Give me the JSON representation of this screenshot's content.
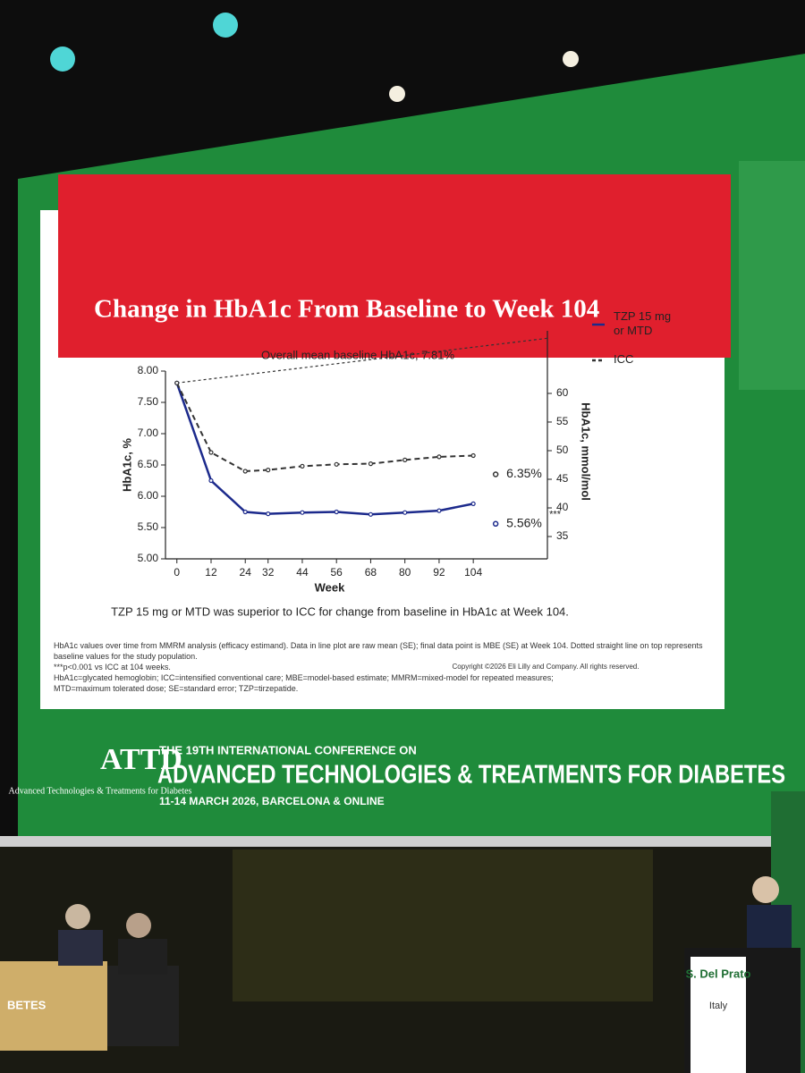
{
  "chart_data": {
    "type": "line",
    "title": "Change in HbA1c From Baseline to Week 104",
    "x": [
      0,
      12,
      24,
      32,
      44,
      56,
      68,
      80,
      92,
      104
    ],
    "xlim": [
      -4,
      130
    ],
    "xticks": [
      0,
      12,
      24,
      32,
      44,
      56,
      68,
      80,
      92,
      104
    ],
    "xlabel": "Week",
    "ylabel": "HbA1c, %",
    "ylim": [
      5,
      8
    ],
    "yticks": [
      {
        "value": 5,
        "label": "5.00"
      },
      {
        "value": 5.5,
        "label": "5.50"
      },
      {
        "value": 6,
        "label": "6.00"
      },
      {
        "value": 6.5,
        "label": "6.50"
      },
      {
        "value": 7,
        "label": "7.00"
      },
      {
        "value": 7.5,
        "label": "7.50"
      },
      {
        "value": 8,
        "label": "8.00"
      }
    ],
    "y2label": "HbA1c, mmol/mol",
    "y2lim": [
      31.1,
      63.9
    ],
    "y2ticks": [
      35,
      40,
      45,
      50,
      55,
      60
    ],
    "series": [
      {
        "name": "TZP 15 mg or MTD",
        "color": "#1c2a8c",
        "dashed": false,
        "values": [
          7.81,
          6.25,
          5.75,
          5.72,
          5.74,
          5.75,
          5.71,
          5.74,
          5.77,
          5.88
        ],
        "final_value": 5.56,
        "final_label": "5.56%",
        "significance": "***"
      },
      {
        "name": "ICC",
        "color": "#333333",
        "dashed": true,
        "values": [
          7.81,
          6.7,
          6.4,
          6.42,
          6.48,
          6.51,
          6.52,
          6.58,
          6.63,
          6.65
        ],
        "final_value": 6.35,
        "final_label": "6.35%"
      }
    ],
    "baseline": 7.81,
    "baseline_label": "Overall mean baseline HbA1c, 7.81%",
    "legend": "upper right",
    "caption": "TZP 15 mg or MTD was superior to ICC for change from baseline in HbA1c at Week 104."
  },
  "footnotes": [
    "HbA1c values over time from MMRM analysis (efficacy estimand). Data in line plot are raw mean (SE); final data point is MBE (SE) at Week 104. Dotted straight line on top represents baseline values for the study population.",
    "***p<0.001 vs ICC at 104 weeks.",
    "HbA1c=glycated hemoglobin; ICC=intensified conventional care; MBE=model-based estimate; MMRM=mixed-model for repeated measures; MTD=maximum tolerated dose; SE=standard error; TZP=tirzepatide."
  ],
  "copyright": "Copyright ©2026 Eli Lilly and Company. All rights reserved.",
  "conference": {
    "logo": "ATTD",
    "logo_subtitle": "Advanced Technologies & Treatments for Diabetes",
    "edition": "THE 19TH INTERNATIONAL CONFERENCE ON",
    "name": "ADVANCED TECHNOLOGIES & TREATMENTS FOR DIABETES",
    "dates": "11-14 MARCH 2026, BARCELONA & ONLINE"
  },
  "podium": {
    "speaker": "S. Del Prato",
    "country": "Italy"
  },
  "table_sign": "BETES"
}
